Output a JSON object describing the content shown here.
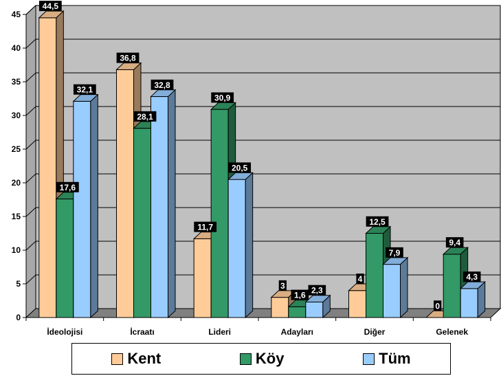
{
  "chart_data": {
    "type": "bar",
    "categories": [
      "İdeolojisi",
      "İcraatı",
      "Lideri",
      "Adayları",
      "Diğer",
      "Gelenek"
    ],
    "series": [
      {
        "name": "Kent",
        "values": [
          44.5,
          36.8,
          11.7,
          3,
          4,
          0
        ],
        "labels": [
          "44,5",
          "36,8",
          "11,7",
          "3",
          "4",
          "0"
        ],
        "color": "#FFCC99"
      },
      {
        "name": "Köy",
        "values": [
          17.6,
          28.1,
          30.9,
          1.6,
          12.5,
          9.4
        ],
        "labels": [
          "17,6",
          "28,1",
          "30,9",
          "1,6",
          "12,5",
          "9,4"
        ],
        "color": "#339966"
      },
      {
        "name": "Tüm",
        "values": [
          32.1,
          32.8,
          20.5,
          2.3,
          7.9,
          4.3
        ],
        "labels": [
          "32,1",
          "32,8",
          "20,5",
          "2,3",
          "7,9",
          "4,3"
        ],
        "color": "#99CCFF"
      }
    ],
    "ylim": [
      0,
      45
    ],
    "yticks": [
      "0",
      "5",
      "10",
      "15",
      "20",
      "25",
      "30",
      "35",
      "40",
      "45"
    ],
    "grid": true,
    "legend_position": "bottom",
    "title": "",
    "xlabel": "",
    "ylabel": ""
  },
  "colors": {
    "wall": "#C0C0C0",
    "floor": "#808080",
    "label_bg": "#000000"
  }
}
